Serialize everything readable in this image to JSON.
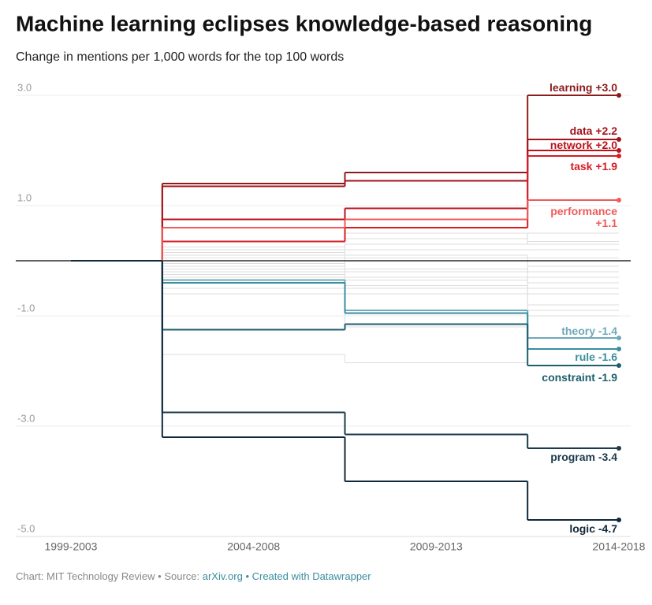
{
  "chart_data": {
    "type": "step-line",
    "title": "Machine learning eclipses knowledge-based reasoning",
    "subtitle": "Change in mentions per 1,000 words for the top 100 words",
    "categories": [
      "1999-2003",
      "2004-2008",
      "2009-2013",
      "2014-2018"
    ],
    "ylim": [
      -5.3,
      3.1
    ],
    "yticks": [
      {
        "value": 3,
        "label": "3.0"
      },
      {
        "value": 1,
        "label": "1.0"
      },
      {
        "value": -1,
        "label": "-1.0"
      },
      {
        "value": -3,
        "label": "-3.0"
      },
      {
        "value": -5,
        "label": "-5.0"
      }
    ],
    "grid": true,
    "series": [
      {
        "name": "learning",
        "color": "#8c1c1c",
        "values": [
          0,
          1.4,
          1.6,
          3.0
        ],
        "value_labels": [
          null,
          null,
          null,
          "+3.0"
        ]
      },
      {
        "name": "data",
        "color": "#a3131b",
        "values": [
          0,
          1.35,
          1.45,
          2.2
        ],
        "value_labels": [
          null,
          null,
          null,
          "+2.2"
        ]
      },
      {
        "name": "network",
        "color": "#b8141e",
        "values": [
          0,
          0.75,
          0.95,
          2.0
        ],
        "value_labels": [
          null,
          null,
          null,
          "+2.0"
        ]
      },
      {
        "name": "task",
        "color": "#d41e24",
        "values": [
          0,
          0.35,
          0.6,
          1.9
        ],
        "value_labels": [
          null,
          null,
          null,
          "+1.9"
        ]
      },
      {
        "name": "performance",
        "color": "#f05a5a",
        "values": [
          0,
          0.6,
          0.75,
          1.1
        ],
        "value_labels": [
          null,
          null,
          null,
          "+1.1"
        ]
      },
      {
        "name": "theory",
        "color": "#6fa9b8",
        "values": [
          0,
          -0.35,
          -0.9,
          -1.4
        ],
        "value_labels": [
          null,
          null,
          null,
          "-1.4"
        ]
      },
      {
        "name": "rule",
        "color": "#3a8ea0",
        "values": [
          0,
          -0.4,
          -0.95,
          -1.6
        ],
        "value_labels": [
          null,
          null,
          null,
          "-1.6"
        ]
      },
      {
        "name": "constraint",
        "color": "#1f5e6d",
        "values": [
          0,
          -1.25,
          -1.15,
          -1.9
        ],
        "value_labels": [
          null,
          null,
          null,
          "-1.9"
        ]
      },
      {
        "name": "program",
        "color": "#1b3a4b",
        "values": [
          0,
          -2.75,
          -3.15,
          -3.4
        ],
        "value_labels": [
          null,
          null,
          null,
          "-3.4"
        ]
      },
      {
        "name": "logic",
        "color": "#10283a",
        "values": [
          0,
          -3.2,
          -4.0,
          -4.7
        ],
        "value_labels": [
          null,
          null,
          null,
          "-4.7"
        ]
      }
    ],
    "background_color": "#dddddd",
    "background_series": [
      {
        "values": [
          0,
          0.2,
          0.4,
          0.5
        ]
      },
      {
        "values": [
          0,
          0.1,
          0.3,
          0.35
        ]
      },
      {
        "values": [
          0,
          -0.1,
          0.2,
          0.2
        ]
      },
      {
        "values": [
          0,
          0.05,
          -0.2,
          -0.1
        ]
      },
      {
        "values": [
          0,
          -0.2,
          -0.3,
          -0.4
        ]
      },
      {
        "values": [
          0,
          -0.3,
          -0.5,
          -0.6
        ]
      },
      {
        "values": [
          0,
          -0.15,
          -0.6,
          -0.8
        ]
      },
      {
        "values": [
          0,
          0.15,
          0.05,
          -0.2
        ]
      },
      {
        "values": [
          0,
          -0.5,
          -0.45,
          -0.9
        ]
      },
      {
        "values": [
          0,
          -0.05,
          0.1,
          0.05
        ]
      },
      {
        "values": [
          0,
          -0.25,
          0.5,
          0.3
        ]
      },
      {
        "values": [
          0,
          -0.6,
          -1.2,
          -1.0
        ]
      },
      {
        "values": [
          0,
          -0.1,
          -0.35,
          -0.3
        ]
      },
      {
        "values": [
          0,
          0.25,
          -0.15,
          -0.5
        ]
      },
      {
        "values": [
          0,
          -1.7,
          -1.85,
          -1.6
        ]
      }
    ],
    "footer": {
      "credit": "Chart: MIT Technology Review • Source:",
      "source": "arXiv.org",
      "tool": "• Created with Datawrapper"
    }
  }
}
